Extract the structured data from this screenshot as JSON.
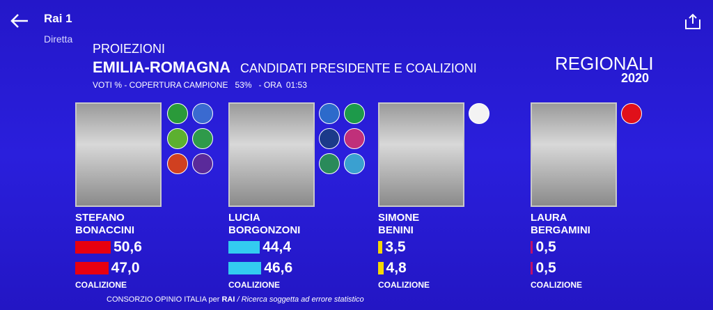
{
  "app_bar": {
    "title": "Rai 1",
    "subtitle": "Diretta"
  },
  "graphic": {
    "kicker": "PROIEZIONI",
    "region": "EMILIA-ROMAGNA",
    "heading": "CANDIDATI PRESIDENTE E COALIZIONI",
    "meta": "VOTI % - COPERTURA CAMPIONE   53%   - ORA  01:53",
    "brand": "REGIONALI",
    "year": "2020",
    "candidates": [
      {
        "first_name": "STEFANO",
        "last_name": "BONACCINI",
        "color": "#e8000f",
        "values": [
          50.6,
          47.0
        ],
        "value_labels": [
          "50,6",
          "47,0"
        ],
        "coalition_label": "COALIZIONE"
      },
      {
        "first_name": "LUCIA",
        "last_name": "BORGONZONI",
        "color": "#33ccf0",
        "values": [
          44.4,
          46.6
        ],
        "value_labels": [
          "44,4",
          "46,6"
        ],
        "coalition_label": "COALIZIONE"
      },
      {
        "first_name": "SIMONE",
        "last_name": "BENINI",
        "color": "#f5d800",
        "values": [
          3.5,
          4.8
        ],
        "value_labels": [
          "3,5",
          "4,8"
        ],
        "coalition_label": "COALIZIONE"
      },
      {
        "first_name": "LAURA",
        "last_name": "BERGAMINI",
        "color": "#c0106a",
        "values": [
          0.5,
          0.5
        ],
        "value_labels": [
          "0,5",
          "0,5"
        ],
        "coalition_label": "COALIZIONE"
      }
    ],
    "footer_source": "CONSORZIO OPINIO ITALIA per",
    "footer_brand": "RAI",
    "footer_note": "/ Ricerca soggetta ad errore statistico"
  }
}
